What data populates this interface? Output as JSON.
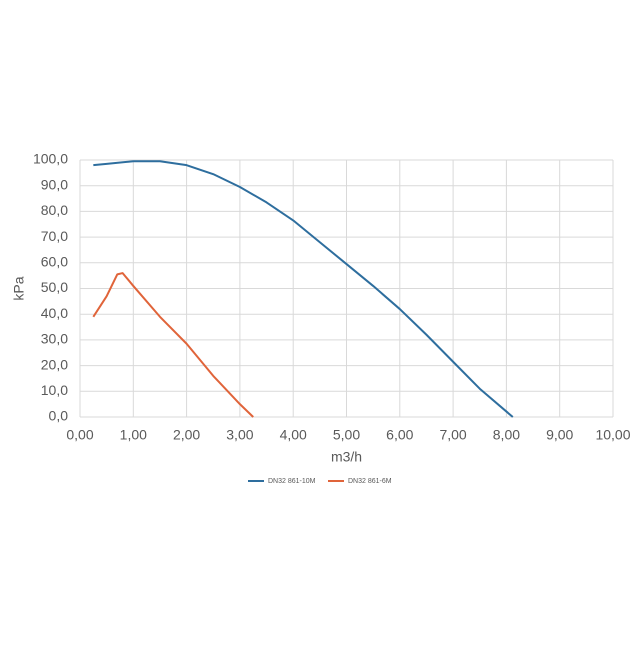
{
  "chart_data": {
    "type": "line",
    "x_label": "m3/h",
    "y_label": "kPa",
    "xlim": [
      0,
      10
    ],
    "ylim": [
      0,
      100
    ],
    "xticks": [
      {
        "value": 0,
        "label": "0,00"
      },
      {
        "value": 1,
        "label": "1,00"
      },
      {
        "value": 2,
        "label": "2,00"
      },
      {
        "value": 3,
        "label": "3,00"
      },
      {
        "value": 4,
        "label": "4,00"
      },
      {
        "value": 5,
        "label": "5,00"
      },
      {
        "value": 6,
        "label": "6,00"
      },
      {
        "value": 7,
        "label": "7,00"
      },
      {
        "value": 8,
        "label": "8,00"
      },
      {
        "value": 9,
        "label": "9,00"
      },
      {
        "value": 10,
        "label": "10,00"
      }
    ],
    "yticks": [
      {
        "value": 0,
        "label": "0,0"
      },
      {
        "value": 10,
        "label": "10,0"
      },
      {
        "value": 20,
        "label": "20,0"
      },
      {
        "value": 30,
        "label": "30,0"
      },
      {
        "value": 40,
        "label": "40,0"
      },
      {
        "value": 50,
        "label": "50,0"
      },
      {
        "value": 60,
        "label": "60,0"
      },
      {
        "value": 70,
        "label": "70,0"
      },
      {
        "value": 80,
        "label": "80,0"
      },
      {
        "value": 90,
        "label": "90,0"
      },
      {
        "value": 100,
        "label": "100,0"
      }
    ],
    "grid": true,
    "legend": "bottom",
    "series": [
      {
        "name": "DN32 861-10M",
        "color": "#2e6e9e",
        "x": [
          0.25,
          0.5,
          1.0,
          1.5,
          2.0,
          2.5,
          3.0,
          3.5,
          4.0,
          4.5,
          5.0,
          5.5,
          6.0,
          6.5,
          7.0,
          7.5,
          8.12
        ],
        "values": [
          98,
          98.5,
          99.5,
          99.5,
          98,
          94.5,
          89.5,
          83.5,
          76.5,
          68,
          59.5,
          51,
          42,
          32,
          21.5,
          11,
          0
        ]
      },
      {
        "name": "DN32 861-6M",
        "color": "#e0643a",
        "x": [
          0.25,
          0.5,
          0.7,
          0.8,
          1.0,
          1.5,
          2.0,
          2.5,
          3.0,
          3.25
        ],
        "values": [
          39,
          47,
          55.5,
          56,
          51,
          39,
          28.5,
          16,
          5,
          0
        ]
      }
    ]
  }
}
